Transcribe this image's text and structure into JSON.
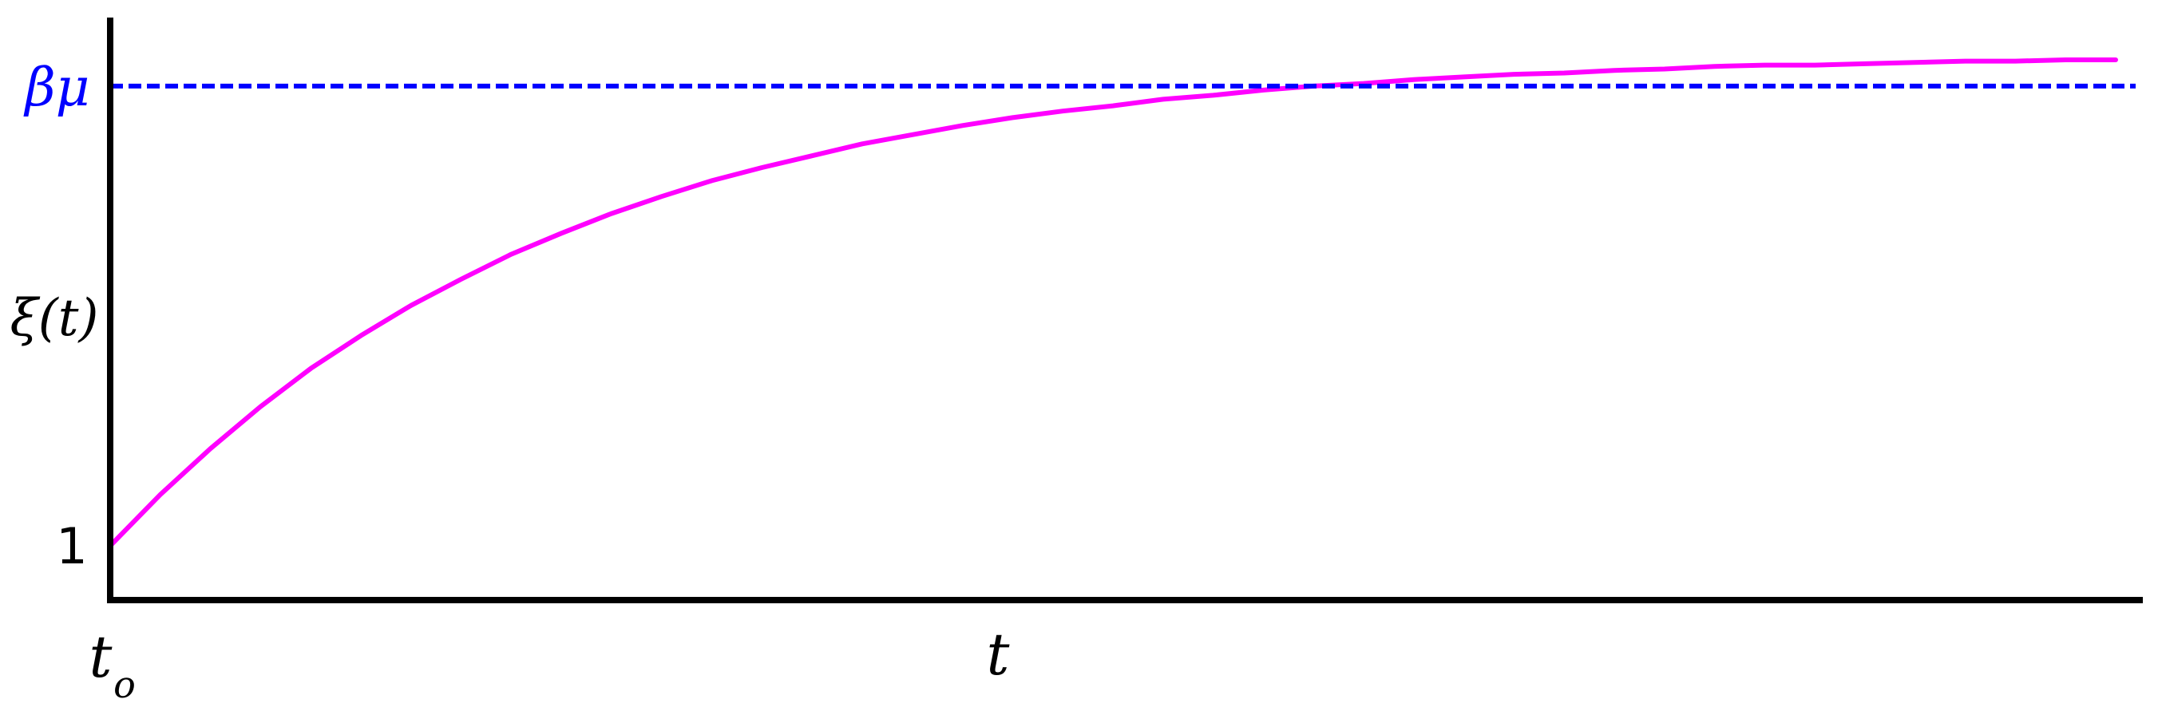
{
  "chart_data": {
    "type": "line",
    "title": "",
    "xlabel": "t",
    "ylabel": "ξ(t)",
    "xlim": [
      0,
      10
    ],
    "ylim": [
      0.7,
      4.7
    ],
    "grid": false,
    "legend": "none",
    "x_ticks": [
      {
        "value": 0,
        "label": "t",
        "sub": "o"
      }
    ],
    "y_ticks": [
      {
        "value": 1,
        "label": "1"
      },
      {
        "value": 4.5,
        "label": "βμ"
      }
    ],
    "series": [
      {
        "kind": "curve",
        "color": "#ff00ff",
        "x": [
          0,
          0.25,
          0.5,
          0.75,
          1,
          1.25,
          1.5,
          1.75,
          2,
          2.25,
          2.5,
          2.75,
          3,
          3.25,
          3.5,
          3.75,
          4,
          4.25,
          4.5,
          4.75,
          5,
          5.25,
          5.5,
          5.75,
          6,
          6.25,
          6.5,
          6.75,
          7,
          7.25,
          7.5,
          7.75,
          8,
          8.25,
          8.5,
          8.75,
          9,
          9.25,
          9.5,
          9.75,
          10
        ],
        "y": [
          1.0,
          1.39,
          1.74,
          2.06,
          2.35,
          2.6,
          2.83,
          3.03,
          3.22,
          3.38,
          3.53,
          3.66,
          3.78,
          3.88,
          3.97,
          4.06,
          4.13,
          4.2,
          4.26,
          4.31,
          4.35,
          4.4,
          4.43,
          4.47,
          4.5,
          4.52,
          4.55,
          4.57,
          4.59,
          4.6,
          4.62,
          4.63,
          4.65,
          4.66,
          4.66,
          4.67,
          4.68,
          4.69,
          4.69,
          4.7,
          4.7
        ]
      },
      {
        "kind": "asymptote",
        "color": "#0000ff",
        "y": 4.5
      }
    ]
  }
}
